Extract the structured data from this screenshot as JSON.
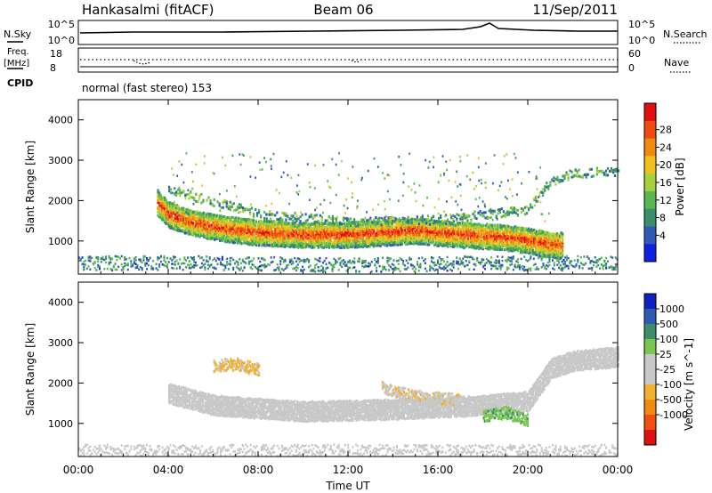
{
  "header": {
    "station": "Hankasalmi (fitACF)",
    "beam": "Beam 06",
    "date": "11/Sep/2011"
  },
  "nsky_panel": {
    "left_label": "N.Sky",
    "right_label": "N.Search",
    "left_ticks": [
      "10^5",
      "10^0"
    ],
    "right_ticks": [
      "10^5",
      "10^0"
    ]
  },
  "freq_panel": {
    "left_label": "Freq.",
    "left_unit": "[MHz]",
    "right_label": "Nave",
    "left_ticks": [
      "18",
      "8"
    ],
    "right_ticks": [
      "60",
      "0"
    ]
  },
  "cpid": {
    "label": "CPID",
    "value": "normal (fast stereo) 153"
  },
  "colors": {
    "power": [
      "#1020e0",
      "#2f5ab8",
      "#3c8f6c",
      "#58b850",
      "#a8d03c",
      "#f0c020",
      "#f08a10",
      "#f04a10",
      "#e01010"
    ],
    "velocity": [
      "#e01010",
      "#f05010",
      "#f08a10",
      "#f0b030",
      "#c8c8c8",
      "#c8c8c8",
      "#78c850",
      "#3c8f6c",
      "#2f5ab8",
      "#1020c0"
    ]
  },
  "chart_data": [
    {
      "type": "heatmap",
      "name": "Power",
      "ylabel": "Slant Range [km]",
      "yticks": [
        1000,
        2000,
        3000,
        4000
      ],
      "ylim": [
        180,
        4500
      ],
      "xlim": [
        0,
        24
      ],
      "colorbar": {
        "label": "Power [dB]",
        "ticks": [
          "28",
          "24",
          "20",
          "16",
          "12",
          "8",
          "4"
        ],
        "range": [
          0,
          30
        ]
      },
      "features": [
        {
          "t": [
            3.5,
            4.0,
            5.0,
            6.5,
            8.0,
            10.0,
            12.0,
            13.5,
            15.0,
            17.0,
            18.5,
            19.5,
            20.0,
            20.5,
            21.0
          ],
          "range": [
            2000,
            1700,
            1500,
            1350,
            1250,
            1200,
            1200,
            1250,
            1300,
            1200,
            1150,
            1100,
            1050,
            1000,
            950
          ],
          "power": 24
        },
        {
          "t": [
            4.0,
            8.0,
            12.0,
            16.0,
            20.0,
            21.0,
            22.0,
            24.0
          ],
          "range": [
            2300,
            1700,
            1500,
            1550,
            1800,
            2500,
            2700,
            2750
          ],
          "power": 10
        },
        {
          "t": [
            0.0,
            6.0,
            12.0,
            18.0,
            24.0
          ],
          "range": [
            300,
            300,
            250,
            300,
            300
          ],
          "power": 8
        }
      ]
    },
    {
      "type": "heatmap",
      "name": "Velocity",
      "ylabel": "Slant Range [km]",
      "xlabel": "Time UT",
      "yticks": [
        1000,
        2000,
        3000,
        4000
      ],
      "ylim": [
        180,
        4500
      ],
      "xlim": [
        0,
        24
      ],
      "xticks": [
        "00:00",
        "04:00",
        "08:00",
        "12:00",
        "16:00",
        "20:00",
        "00:00"
      ],
      "colorbar": {
        "label": "Velocity [m s^-1]",
        "ticks": [
          "1000",
          "500",
          "100",
          "25",
          "-25",
          "-100",
          "-500",
          "-1000"
        ],
        "range": [
          -1200,
          1200
        ]
      },
      "features": [
        {
          "t": [
            4.0,
            6.0,
            10.0,
            14.0,
            18.0,
            20.0,
            21.0,
            22.0,
            24.0
          ],
          "range": [
            1800,
            1500,
            1350,
            1400,
            1500,
            1600,
            2400,
            2600,
            2700
          ],
          "velocity": 0
        },
        {
          "t": [
            6.0,
            7.0,
            8.0
          ],
          "range": [
            2450,
            2500,
            2350
          ],
          "velocity": -300
        },
        {
          "t": [
            13.5,
            15.0,
            17.0
          ],
          "range": [
            1900,
            1700,
            1600
          ],
          "velocity": -200
        },
        {
          "t": [
            18.0,
            19.0,
            20.0
          ],
          "range": [
            1200,
            1300,
            1100
          ],
          "velocity": 400
        }
      ]
    }
  ]
}
